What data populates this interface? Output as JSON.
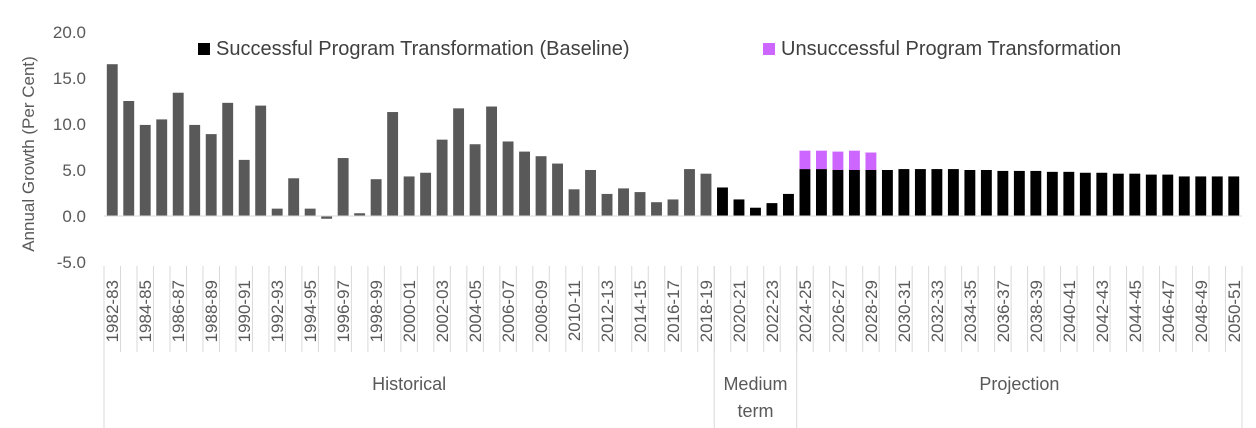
{
  "chart_data": {
    "type": "bar",
    "stacked": true,
    "ylabel": "Annual Growth (Per Cent)",
    "ylim": [
      -5,
      20
    ],
    "yticks": [
      "20.0",
      "15.0",
      "10.0",
      "5.0",
      "0.0",
      "-5.0"
    ],
    "legend": [
      {
        "name": "Successful Program Transformation (Baseline)",
        "color": "#000000"
      },
      {
        "name": "Unsuccessful Program Transformation",
        "color": "#cc66ff"
      }
    ],
    "categories": [
      "1982-83",
      "1983-84",
      "1984-85",
      "1985-86",
      "1986-87",
      "1987-88",
      "1988-89",
      "1989-90",
      "1990-91",
      "1991-92",
      "1992-93",
      "1993-94",
      "1994-95",
      "1995-96",
      "1996-97",
      "1997-98",
      "1998-99",
      "1999-00",
      "2000-01",
      "2001-02",
      "2002-03",
      "2003-04",
      "2004-05",
      "2005-06",
      "2006-07",
      "2007-08",
      "2008-09",
      "2009-10",
      "2010-11",
      "2011-12",
      "2012-13",
      "2013-14",
      "2014-15",
      "2015-16",
      "2016-17",
      "2017-18",
      "2018-19",
      "2019-20",
      "2020-21",
      "2021-22",
      "2022-23",
      "2023-24",
      "2024-25",
      "2025-26",
      "2026-27",
      "2027-28",
      "2028-29",
      "2029-30",
      "2030-31",
      "2031-32",
      "2032-33",
      "2033-34",
      "2034-35",
      "2035-36",
      "2036-37",
      "2037-38",
      "2038-39",
      "2039-40",
      "2040-41",
      "2041-42",
      "2042-43",
      "2043-44",
      "2044-45",
      "2045-46",
      "2046-47",
      "2047-48",
      "2048-49",
      "2049-50",
      "2050-51"
    ],
    "values": [
      16.5,
      12.5,
      9.9,
      10.5,
      13.4,
      9.9,
      8.9,
      12.3,
      6.1,
      12.0,
      0.8,
      4.1,
      0.8,
      -0.3,
      6.3,
      0.3,
      4.0,
      11.3,
      4.3,
      4.7,
      8.3,
      11.7,
      7.8,
      11.9,
      8.1,
      7.0,
      6.5,
      5.7,
      2.9,
      5.0,
      2.4,
      3.0,
      2.6,
      1.5,
      1.8,
      5.1,
      4.6,
      3.1,
      1.8,
      0.9,
      1.4,
      2.4,
      5.1,
      5.1,
      5.0,
      5.0,
      5.0,
      5.0,
      5.1,
      5.1,
      5.1,
      5.1,
      5.0,
      5.0,
      4.9,
      4.9,
      4.9,
      4.8,
      4.8,
      4.7,
      4.7,
      4.6,
      4.6,
      4.5,
      4.5,
      4.3,
      4.3,
      4.3,
      4.3
    ],
    "unsuccessful_extra": [
      0,
      0,
      0,
      0,
      0,
      0,
      0,
      0,
      0,
      0,
      0,
      0,
      0,
      0,
      0,
      0,
      0,
      0,
      0,
      0,
      0,
      0,
      0,
      0,
      0,
      0,
      0,
      0,
      0,
      0,
      0,
      0,
      0,
      0,
      0,
      0,
      0,
      0,
      0,
      0,
      0,
      0,
      2.0,
      2.0,
      2.0,
      2.1,
      1.9,
      0,
      0,
      0,
      0,
      0,
      0,
      0,
      0,
      0,
      0,
      0,
      0,
      0,
      0,
      0,
      0,
      0,
      0,
      0,
      0,
      0,
      0
    ],
    "series_colors": {
      "historical": "#595959",
      "forecast": "#000000",
      "unsuccessful": "#cc66ff"
    },
    "groups": [
      {
        "label": "Historical",
        "start": 0,
        "end": 36
      },
      {
        "label": "Medium term",
        "start": 37,
        "end": 41
      },
      {
        "label": "Projection",
        "start": 42,
        "end": 68
      }
    ]
  }
}
